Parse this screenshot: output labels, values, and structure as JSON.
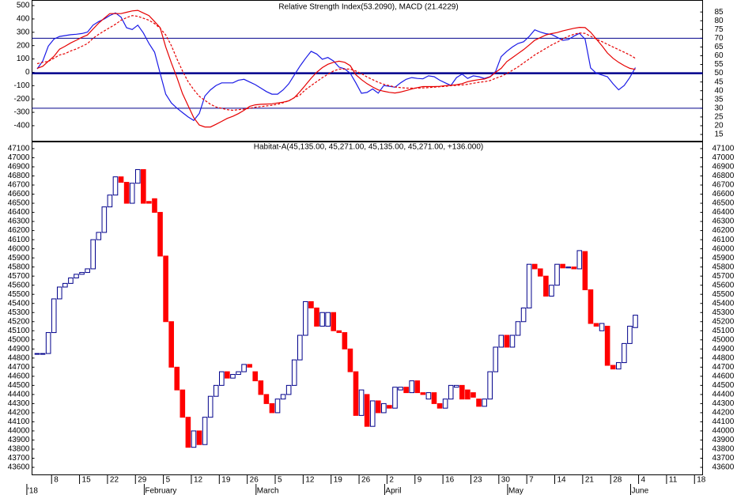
{
  "chart_data": [
    {
      "type": "line",
      "title": "Relative Strength Index(53.2090), MACD (21.4229)",
      "ylim": [
        -513,
        536
      ],
      "yticks": [
        -400,
        -300,
        -200,
        -100,
        0,
        100,
        200,
        300,
        400,
        500
      ],
      "y2lim": [
        11.4,
        91.4
      ],
      "y2ticks": [
        15,
        20,
        25,
        30,
        35,
        40,
        45,
        50,
        55,
        60,
        65,
        70,
        75,
        80,
        85
      ],
      "reference_lines": [
        30,
        50,
        70
      ],
      "reference_color": "#00008b",
      "series": [
        {
          "color": "#1a1ae6",
          "axis": "y2",
          "dashed": false,
          "values": [
            52.5,
            57,
            65.5,
            69.5,
            71,
            71.5,
            72,
            72.3,
            72.7,
            73.5,
            77.5,
            79.5,
            81,
            83,
            84.5,
            82,
            76,
            75,
            77.5,
            73,
            67,
            62,
            50,
            38,
            33,
            30,
            27.5,
            25,
            23,
            27,
            37,
            40.5,
            43,
            44.5,
            44.5,
            44.5,
            46,
            46.5,
            45,
            43.5,
            41.5,
            39.5,
            38,
            38,
            40.5,
            44,
            49,
            54,
            58.5,
            62.5,
            61,
            58,
            59,
            57,
            53.5,
            52.5,
            50,
            44.5,
            38.5,
            39,
            41,
            38.6,
            43,
            42.5,
            42,
            44.5,
            46.5,
            47.5,
            47,
            46.8,
            48.5,
            48,
            46,
            44.5,
            43,
            47.5,
            49.5,
            47,
            48.5,
            48,
            47,
            48,
            51,
            59.5,
            62.5,
            65,
            67,
            68,
            71,
            74.8,
            73.5,
            72.6,
            72.2,
            70.5,
            68.8,
            69.2,
            71.2,
            72.8,
            69.5,
            53,
            50,
            49,
            48,
            44,
            40.5,
            43,
            47.5,
            53.2,
            null,
            null,
            null,
            null,
            null,
            null,
            null,
            null,
            null,
            null,
            null
          ]
        },
        {
          "color": "#e60000",
          "axis": "y",
          "dashed": false,
          "values": [
            30,
            45,
            83,
            120,
            173,
            195,
            220,
            240,
            262,
            280,
            325,
            369,
            405,
            440,
            440,
            440,
            450,
            460,
            464,
            445,
            425,
            380,
            335,
            190,
            70,
            -40,
            -160,
            -250,
            -340,
            -395,
            -410,
            -410,
            -390,
            -368,
            -345,
            -330,
            -310,
            -285,
            -255,
            -244,
            -240,
            -238,
            -236,
            -230,
            -224,
            -214,
            -190,
            -145,
            -95,
            -45,
            0,
            35,
            60,
            75,
            83,
            75,
            50,
            -18,
            -55,
            -85,
            -110,
            -132,
            -142,
            -150,
            -155,
            -148,
            -137,
            -125,
            -115,
            -107,
            -107,
            -107,
            -105,
            -100,
            -97,
            -93,
            -85,
            -70,
            -62,
            -55,
            -50,
            -35,
            0,
            30,
            80,
            110,
            140,
            170,
            205,
            240,
            260,
            280,
            290,
            298,
            310,
            320,
            330,
            337,
            335,
            300,
            250,
            200,
            145,
            105,
            75,
            50,
            30,
            21.4229,
            null,
            null,
            null,
            null,
            null,
            null,
            null,
            null,
            null,
            null,
            null
          ]
        },
        {
          "color": "#e60000",
          "axis": "y",
          "dashed": true,
          "values": [
            65,
            75,
            82,
            105,
            130,
            140,
            160,
            175,
            195,
            215,
            255,
            285,
            310,
            335,
            360,
            390,
            410,
            425,
            420,
            405,
            390,
            365,
            330,
            280,
            200,
            100,
            10,
            -70,
            -130,
            -180,
            -210,
            -240,
            -260,
            -270,
            -280,
            -285,
            -280,
            -276,
            -270,
            -262,
            -257,
            -252,
            -247,
            -240,
            -228,
            -214,
            -190,
            -170,
            -130,
            -100,
            -70,
            -40,
            -15,
            10,
            24,
            24,
            24,
            10,
            -10,
            -35,
            -55,
            -75,
            -90,
            -100,
            -110,
            -115,
            -118,
            -119,
            -119,
            -117,
            -115,
            -112,
            -108,
            -105,
            -100,
            -98,
            -95,
            -90,
            -82,
            -75,
            -70,
            -62,
            -45,
            -30,
            -10,
            15,
            40,
            70,
            100,
            130,
            155,
            180,
            205,
            225,
            250,
            270,
            285,
            295,
            292,
            270,
            250,
            230,
            210,
            190,
            170,
            150,
            130,
            105,
            null,
            null,
            null,
            null,
            null,
            null,
            null,
            null,
            null,
            null,
            null
          ]
        }
      ]
    },
    {
      "type": "candlestick",
      "title": "Habitat-A(45,135.00, 45,271.00, 45,135.00, 45,271.00, +136.000)",
      "ylim": [
        43522,
        47169
      ],
      "yticks": [
        43600,
        43700,
        43800,
        43900,
        44000,
        44100,
        44200,
        44300,
        44400,
        44500,
        44600,
        44700,
        44800,
        44900,
        45000,
        45100,
        45200,
        45300,
        45400,
        45500,
        45600,
        45700,
        45800,
        45900,
        46000,
        46100,
        46200,
        46300,
        46400,
        46500,
        46600,
        46700,
        46800,
        46900,
        47000,
        47100
      ],
      "up_color": "#ffffff",
      "up_edge": "#00008b",
      "down_color": "#ff0000",
      "months": [
        "'18",
        "February",
        "March",
        "April",
        "May",
        "June"
      ],
      "categories": [
        null,
        null,
        null,
        "8",
        null,
        null,
        null,
        null,
        "15",
        null,
        null,
        null,
        null,
        "22",
        null,
        null,
        null,
        null,
        "29",
        null,
        null,
        null,
        null,
        "5",
        null,
        null,
        null,
        null,
        "12",
        null,
        null,
        null,
        null,
        "19",
        null,
        null,
        null,
        null,
        "26",
        null,
        null,
        null,
        null,
        "5",
        null,
        null,
        null,
        null,
        "12",
        null,
        null,
        null,
        null,
        "19",
        null,
        null,
        null,
        null,
        "26",
        null,
        null,
        null,
        null,
        "2",
        null,
        null,
        null,
        null,
        "9",
        null,
        null,
        null,
        null,
        "16",
        null,
        null,
        null,
        null,
        "23",
        null,
        null,
        null,
        null,
        "30",
        null,
        null,
        null,
        null,
        "7",
        null,
        null,
        null,
        null,
        "14",
        null,
        null,
        null,
        null,
        "21",
        null,
        null,
        null,
        null,
        "28",
        null,
        null,
        null,
        null,
        "4",
        null,
        null,
        null,
        null,
        "11",
        null,
        null,
        null,
        null,
        "18"
      ],
      "open": [
        44850,
        44850,
        44850,
        45080,
        45450,
        45580,
        45620,
        45680,
        45720,
        45740,
        45780,
        46100,
        46180,
        46460,
        46590,
        46790,
        46730,
        46500,
        46720,
        46870,
        46520,
        46550,
        46400,
        45920,
        45200,
        44700,
        44450,
        44150,
        43820,
        44000,
        43850,
        44150,
        44380,
        44500,
        44650,
        44580,
        44620,
        44650,
        44730,
        44650,
        44550,
        44400,
        44300,
        44200,
        44350,
        44400,
        44500,
        44780,
        45050,
        45420,
        45350,
        45150,
        45150,
        45300,
        45100,
        45080,
        44900,
        44650,
        44170,
        44400,
        44050,
        44330,
        44200,
        44280,
        44250,
        44450,
        44480,
        44420,
        44550,
        44420,
        44350,
        44420,
        44300,
        44250,
        44350,
        44480,
        44500,
        44450,
        44420,
        44350,
        44270,
        44350,
        44650,
        44920,
        45050,
        44920,
        45050,
        45200,
        45350,
        45830,
        45780,
        45700,
        45480,
        45600,
        45830,
        45790,
        45800,
        45780,
        45970,
        45550,
        45180,
        45100,
        45150,
        44720,
        44680,
        44750,
        44960,
        45135,
        null,
        null,
        null,
        null,
        null,
        null,
        null,
        null,
        null,
        null,
        null
      ],
      "close": [
        44850,
        44850,
        45080,
        45450,
        45580,
        45620,
        45680,
        45720,
        45740,
        45780,
        46100,
        46180,
        46460,
        46590,
        46790,
        46730,
        46500,
        46720,
        46870,
        46500,
        46500,
        46400,
        45920,
        45200,
        44700,
        44450,
        44150,
        43820,
        44000,
        43850,
        44150,
        44380,
        44500,
        44650,
        44580,
        44620,
        44650,
        44730,
        44700,
        44550,
        44400,
        44300,
        44200,
        44350,
        44400,
        44500,
        44780,
        45050,
        45420,
        45350,
        45150,
        45300,
        45300,
        45100,
        45080,
        44900,
        44650,
        44170,
        44450,
        44050,
        44330,
        44200,
        44300,
        44250,
        44480,
        44480,
        44420,
        44550,
        44420,
        44400,
        44420,
        44300,
        44250,
        44350,
        44500,
        44500,
        44350,
        44350,
        44370,
        44270,
        44350,
        44650,
        44920,
        45050,
        44920,
        45050,
        45200,
        45350,
        45830,
        45780,
        45700,
        45480,
        45600,
        45830,
        45790,
        45800,
        45780,
        45980,
        45550,
        45180,
        45150,
        45180,
        44720,
        44680,
        44750,
        44960,
        45150,
        45271,
        null,
        null,
        null,
        null,
        null,
        null,
        null,
        null,
        null,
        null,
        null
      ]
    }
  ]
}
